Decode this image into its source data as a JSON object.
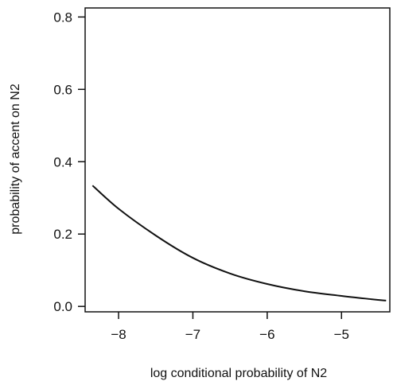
{
  "chart_data": {
    "type": "line",
    "title": "",
    "xlabel": "log conditional probability of N2",
    "ylabel": "probability of accent on N2",
    "xlim": [
      -8.45,
      -4.35
    ],
    "ylim": [
      -0.015,
      0.825
    ],
    "x_ticks": [
      {
        "value": -8,
        "label": "−8"
      },
      {
        "value": -7,
        "label": "−7"
      },
      {
        "value": -6,
        "label": "−6"
      },
      {
        "value": -5,
        "label": "−5"
      }
    ],
    "y_ticks": [
      {
        "value": 0.0,
        "label": "0.0"
      },
      {
        "value": 0.2,
        "label": "0.2"
      },
      {
        "value": 0.4,
        "label": "0.4"
      },
      {
        "value": 0.6,
        "label": "0.6"
      },
      {
        "value": 0.8,
        "label": "0.8"
      }
    ],
    "grid": false,
    "series": [
      {
        "color": "#111111",
        "x": [
          -8.35,
          -8.0,
          -7.5,
          -7.0,
          -6.5,
          -6.0,
          -5.5,
          -5.0,
          -4.6,
          -4.4
        ],
        "y": [
          0.334,
          0.27,
          0.196,
          0.134,
          0.091,
          0.062,
          0.042,
          0.029,
          0.02,
          0.016
        ]
      }
    ]
  }
}
